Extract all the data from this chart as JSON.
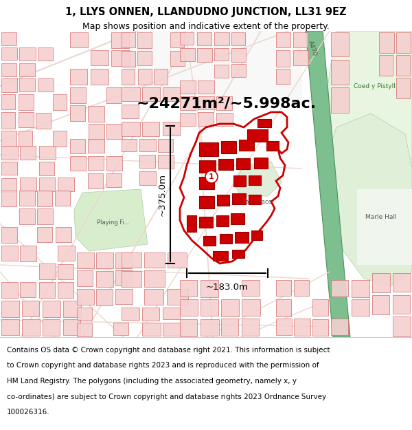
{
  "title_line1": "1, LLYS ONNEN, LLANDUDNO JUNCTION, LL31 9EZ",
  "title_line2": "Map shows position and indicative extent of the property.",
  "area_label": "~24271m²/~5.998ac.",
  "height_label": "~375.0m",
  "width_label": "~183.0m",
  "marker_label": "1",
  "footer_lines": [
    "Contains OS data © Crown copyright and database right 2021. This information is subject",
    "to Crown copyright and database rights 2023 and is reproduced with the permission of",
    "HM Land Registry. The polygons (including the associated geometry, namely x, y",
    "co-ordinates) are subject to Crown copyright and database rights 2023 Ordnance Survey",
    "100026316."
  ],
  "map_bg": "#ffffff",
  "building_face": "#f5d0d0",
  "building_edge": "#d06060",
  "property_edge": "#cc0000",
  "property_fill": "#ffffff",
  "green_river": "#7dbf8e",
  "green_area": "#d4edcc",
  "green_light": "#e8f5e0",
  "fig_width": 6.0,
  "fig_height": 6.25,
  "dpi": 100
}
